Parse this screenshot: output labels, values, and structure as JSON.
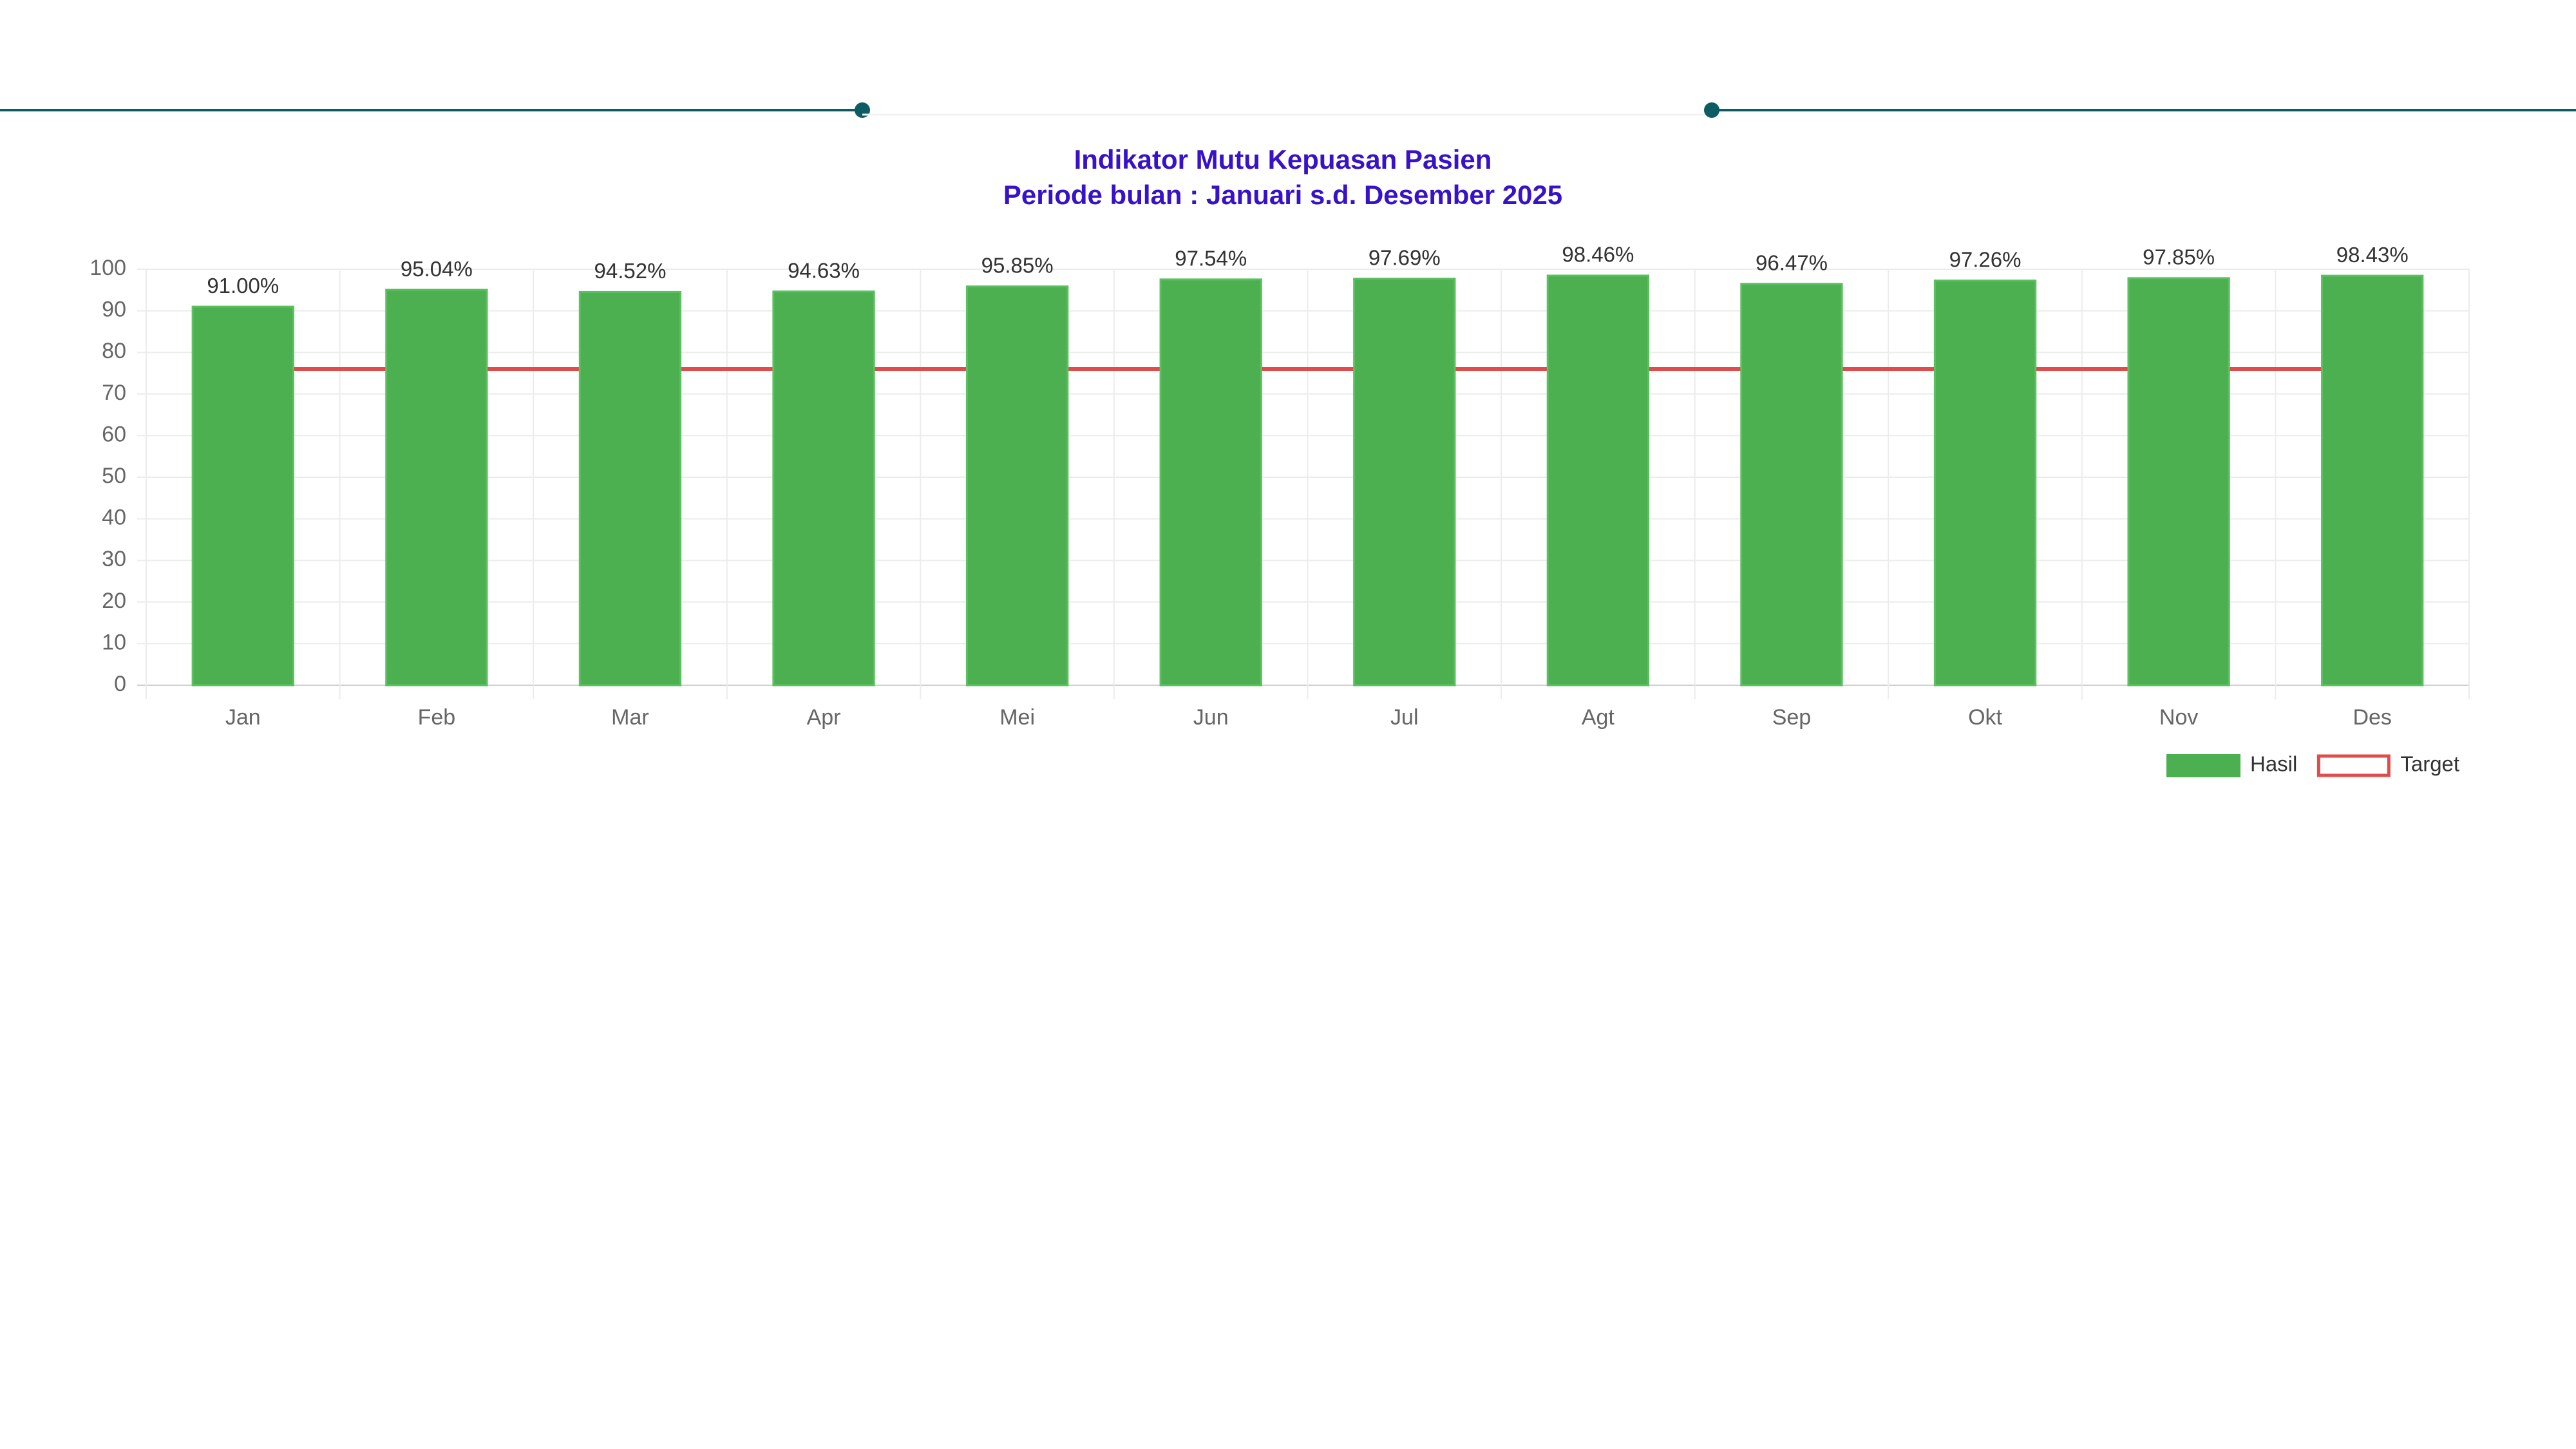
{
  "chart_data": {
    "type": "bar",
    "title": "Indikator Mutu Kepuasan Pasien",
    "subtitle": "Periode bulan : Januari s.d. Desember 2025",
    "categories": [
      "Jan",
      "Feb",
      "Mar",
      "Apr",
      "Mei",
      "Jun",
      "Jul",
      "Agt",
      "Sep",
      "Okt",
      "Nov",
      "Des"
    ],
    "series": [
      {
        "name": "Hasil",
        "type": "bar",
        "color": "#4caf50",
        "values": [
          91,
          95.04,
          94.52,
          94.63,
          95.85,
          97.54,
          97.69,
          98.46,
          96.47,
          97.26,
          97.85,
          98.43
        ],
        "value_labels": [
          "91.00%",
          "95.04%",
          "94.52%",
          "94.63%",
          "95.85%",
          "97.54%",
          "97.69%",
          "98.46%",
          "96.47%",
          "97.26%",
          "97.85%",
          "98.43%"
        ]
      },
      {
        "name": "Target",
        "type": "line",
        "color": "#e04b4b",
        "values": [
          76,
          76,
          76,
          76,
          76,
          76,
          76,
          76,
          76,
          76,
          76,
          76
        ]
      }
    ],
    "ylim": [
      0,
      100
    ],
    "yticks": [
      0,
      10,
      20,
      30,
      40,
      50,
      60,
      70,
      80,
      90,
      100
    ],
    "grid": true,
    "legend": "bottom-right"
  }
}
